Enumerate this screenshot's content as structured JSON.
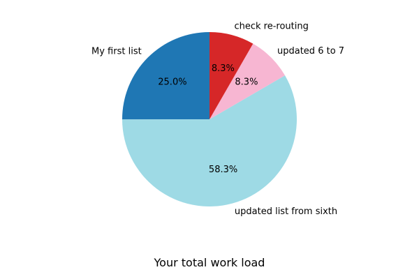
{
  "chart_data": {
    "type": "pie",
    "title": "Your total work load",
    "slices": [
      {
        "label": "My first list",
        "value": 25.0,
        "pct_label": "25.0%",
        "color": "#1f77b4"
      },
      {
        "label": "updated list from sixth",
        "value": 58.3,
        "pct_label": "58.3%",
        "color": "#9edae5"
      },
      {
        "label": "updated 6 to 7",
        "value": 8.3,
        "pct_label": "8.3%",
        "color": "#f7b6d2"
      },
      {
        "label": "check re-routing",
        "value": 8.3,
        "pct_label": "8.3%",
        "color": "#d62728"
      }
    ],
    "start_angle_deg": 90,
    "direction": "counterclockwise"
  }
}
